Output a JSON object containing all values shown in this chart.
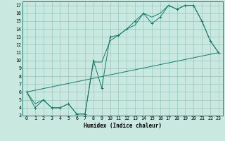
{
  "title": "",
  "xlabel": "Humidex (Indice chaleur)",
  "bg_color": "#c8e8e0",
  "grid_color": "#8bbfb8",
  "line_color": "#1a7a6a",
  "xlim": [
    -0.5,
    23.5
  ],
  "ylim": [
    3,
    17.5
  ],
  "yticks": [
    3,
    4,
    5,
    6,
    7,
    8,
    9,
    10,
    11,
    12,
    13,
    14,
    15,
    16,
    17
  ],
  "xticks": [
    0,
    1,
    2,
    3,
    4,
    5,
    6,
    7,
    8,
    9,
    10,
    11,
    12,
    13,
    14,
    15,
    16,
    17,
    18,
    19,
    20,
    21,
    22,
    23
  ],
  "line1_x": [
    0,
    1,
    2,
    3,
    4,
    5,
    6,
    7,
    8,
    9,
    10,
    11,
    12,
    13,
    14,
    15,
    16,
    17,
    18,
    19,
    20,
    21,
    22,
    23
  ],
  "line1_y": [
    6.0,
    4.0,
    5.0,
    4.0,
    4.0,
    4.5,
    3.2,
    3.2,
    10.0,
    6.5,
    13.0,
    13.2,
    14.0,
    15.0,
    16.0,
    14.7,
    15.5,
    17.0,
    16.5,
    17.0,
    17.0,
    15.0,
    12.5,
    11.0
  ],
  "line2_x": [
    0,
    1,
    2,
    3,
    4,
    5,
    6,
    7,
    8,
    9,
    10,
    11,
    12,
    13,
    14,
    15,
    16,
    17,
    18,
    19,
    20,
    21,
    22,
    23
  ],
  "line2_y": [
    6.0,
    4.5,
    5.0,
    4.0,
    4.0,
    4.5,
    3.2,
    3.2,
    9.8,
    9.8,
    12.5,
    13.2,
    14.0,
    14.5,
    16.0,
    15.5,
    16.0,
    17.0,
    16.5,
    17.0,
    17.0,
    15.0,
    12.5,
    11.0
  ],
  "line3_x": [
    0,
    23
  ],
  "line3_y": [
    6.0,
    11.0
  ],
  "xlabel_fontsize": 5.5,
  "tick_fontsize": 4.8
}
